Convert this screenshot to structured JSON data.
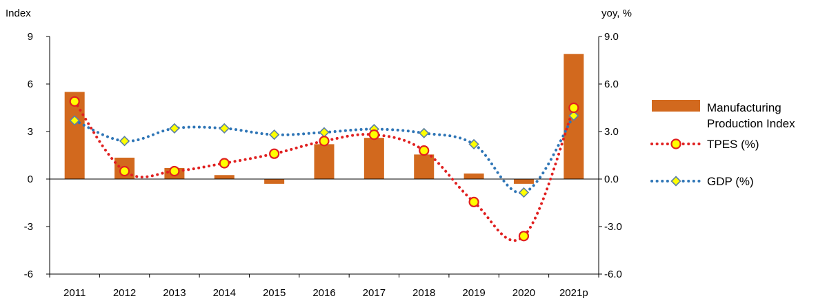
{
  "chart_data": {
    "type": "bar",
    "title": "",
    "y_left_label": "Index",
    "y_right_label": "yoy, %",
    "y_left_ticks": [
      "9",
      "6",
      "3",
      "0",
      "-3",
      "-6"
    ],
    "y_right_ticks": [
      "9.0",
      "6.0",
      "3.0",
      "0.0",
      "-3.0",
      "-6.0"
    ],
    "ylim_left": [
      -6,
      9
    ],
    "ylim_right": [
      -6.0,
      9.0
    ],
    "categories": [
      "2011",
      "2012",
      "2013",
      "2014",
      "2015",
      "2016",
      "2017",
      "2018",
      "2019",
      "2020",
      "2021p"
    ],
    "series": [
      {
        "name": "Manufacturing Production Index",
        "kind": "bar",
        "axis": "left",
        "color": "#d2691e",
        "values": [
          5.5,
          1.35,
          0.7,
          0.25,
          -0.3,
          2.2,
          2.6,
          1.55,
          0.35,
          -0.3,
          7.9
        ]
      },
      {
        "name": "TPES (%)",
        "kind": "line",
        "axis": "right",
        "color": "#e02020",
        "marker": "circle",
        "values": [
          4.9,
          0.5,
          0.5,
          1.0,
          1.6,
          2.4,
          2.8,
          1.8,
          -1.45,
          -3.6,
          4.5
        ]
      },
      {
        "name": "GDP (%)",
        "kind": "line",
        "axis": "right",
        "color": "#2e75b6",
        "marker": "diamond",
        "values": [
          3.7,
          2.4,
          3.2,
          3.2,
          2.8,
          2.95,
          3.15,
          2.9,
          2.2,
          -0.85,
          4.0
        ]
      }
    ],
    "legend": {
      "position": "right",
      "entries": [
        {
          "label_lines": [
            "Manufacturing",
            "Production Index"
          ]
        },
        {
          "label_lines": [
            "TPES (%)"
          ]
        },
        {
          "label_lines": [
            "GDP (%)"
          ]
        }
      ]
    }
  }
}
